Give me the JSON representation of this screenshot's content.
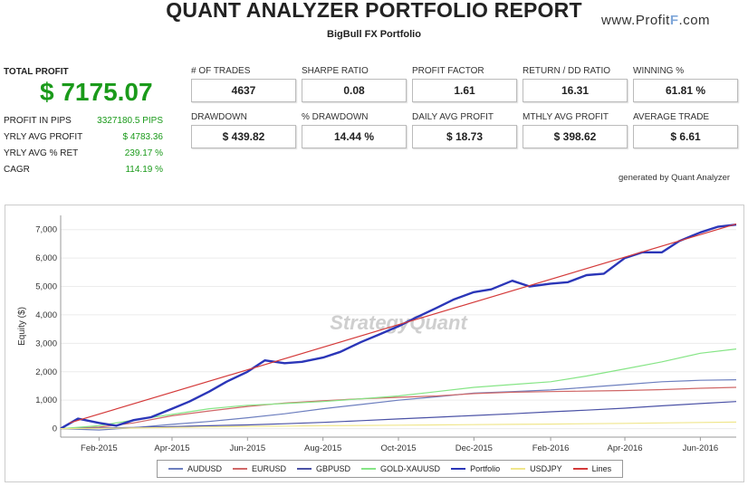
{
  "header": {
    "title": "QUANT ANALYZER PORTFOLIO REPORT",
    "subtitle": "BigBull FX Portfolio",
    "brand_prefix": "www.Profit",
    "brand_mid": "F",
    "brand_suffix": ".com"
  },
  "summary": {
    "total_profit_label": "TOTAL PROFIT",
    "total_profit_value": "$ 7175.07",
    "rows": [
      {
        "label": "PROFIT IN PIPS",
        "value": "3327180.5 PIPS"
      },
      {
        "label": "YRLY AVG PROFIT",
        "value": "$ 4783.36"
      },
      {
        "label": "YRLY AVG % RET",
        "value": "239.17 %"
      },
      {
        "label": "CAGR",
        "value": "114.19 %"
      }
    ]
  },
  "stats": [
    {
      "label": "# OF TRADES",
      "value": "4637"
    },
    {
      "label": "SHARPE RATIO",
      "value": "0.08"
    },
    {
      "label": "PROFIT FACTOR",
      "value": "1.61"
    },
    {
      "label": "RETURN / DD RATIO",
      "value": "16.31"
    },
    {
      "label": "WINNING %",
      "value": "61.81 %"
    },
    {
      "label": "DRAWDOWN",
      "value": "$ 439.82"
    },
    {
      "label": "% DRAWDOWN",
      "value": "14.44 %"
    },
    {
      "label": "DAILY AVG PROFIT",
      "value": "$ 18.73"
    },
    {
      "label": "MTHLY AVG PROFIT",
      "value": "$ 398.62"
    },
    {
      "label": "AVERAGE TRADE",
      "value": "$ 6.61"
    }
  ],
  "generated_by": "generated by Quant Analyzer",
  "watermark": "StrategyQuant",
  "chart_data": {
    "type": "line",
    "title": "",
    "xlabel": "",
    "ylabel": "Equity ($)",
    "ylim": [
      -300,
      7500
    ],
    "yticks": [
      0,
      1000,
      2000,
      3000,
      4000,
      5000,
      6000,
      7000
    ],
    "ytick_labels": [
      "0",
      "1,000",
      "2,000",
      "3,000",
      "4,000",
      "5,000",
      "6,000",
      "7,000"
    ],
    "x_range": [
      "2015-01-01",
      "2016-06-30"
    ],
    "xticks": [
      "2015-02-01",
      "2015-04-01",
      "2015-06-01",
      "2015-08-01",
      "2015-10-01",
      "2015-12-01",
      "2016-02-01",
      "2016-04-01",
      "2016-06-01"
    ],
    "xtick_labels": [
      "Feb-2015",
      "Apr-2015",
      "Jun-2015",
      "Aug-2015",
      "Oct-2015",
      "Dec-2015",
      "Feb-2016",
      "Apr-2016",
      "Jun-2016"
    ],
    "legend_position": "bottom",
    "series": [
      {
        "name": "AUDUSD",
        "color": "#6d7fbf",
        "x": [
          "2015-01-01",
          "2015-02-01",
          "2015-03-01",
          "2015-04-01",
          "2015-05-01",
          "2015-06-01",
          "2015-07-01",
          "2015-08-01",
          "2015-09-01",
          "2015-10-01",
          "2015-11-01",
          "2015-12-01",
          "2016-01-01",
          "2016-02-01",
          "2016-03-01",
          "2016-04-01",
          "2016-05-01",
          "2016-06-01",
          "2016-06-30"
        ],
        "y": [
          0,
          -50,
          30,
          150,
          250,
          380,
          520,
          700,
          850,
          1000,
          1120,
          1250,
          1300,
          1360,
          1450,
          1550,
          1650,
          1700,
          1720
        ]
      },
      {
        "name": "EURUSD",
        "color": "#d06868",
        "x": [
          "2015-01-01",
          "2015-02-01",
          "2015-03-01",
          "2015-04-01",
          "2015-05-01",
          "2015-06-01",
          "2015-07-01",
          "2015-08-01",
          "2015-09-01",
          "2015-10-01",
          "2015-11-01",
          "2015-12-01",
          "2016-01-01",
          "2016-02-01",
          "2016-03-01",
          "2016-04-01",
          "2016-05-01",
          "2016-06-01",
          "2016-06-30"
        ],
        "y": [
          0,
          50,
          200,
          450,
          620,
          780,
          900,
          980,
          1050,
          1100,
          1150,
          1230,
          1280,
          1300,
          1320,
          1340,
          1370,
          1420,
          1450
        ]
      },
      {
        "name": "GBPUSD",
        "color": "#4b52a6",
        "x": [
          "2015-01-01",
          "2015-02-01",
          "2015-03-01",
          "2015-04-01",
          "2015-05-01",
          "2015-06-01",
          "2015-07-01",
          "2015-08-01",
          "2015-09-01",
          "2015-10-01",
          "2015-11-01",
          "2015-12-01",
          "2016-01-01",
          "2016-02-01",
          "2016-03-01",
          "2016-04-01",
          "2016-05-01",
          "2016-06-01",
          "2016-06-30"
        ],
        "y": [
          0,
          20,
          40,
          70,
          100,
          130,
          170,
          220,
          280,
          340,
          400,
          460,
          520,
          590,
          650,
          720,
          800,
          880,
          950
        ]
      },
      {
        "name": "GOLD-XAUUSD",
        "color": "#86e586",
        "x": [
          "2015-01-01",
          "2015-02-01",
          "2015-03-01",
          "2015-04-01",
          "2015-05-01",
          "2015-06-01",
          "2015-07-01",
          "2015-08-01",
          "2015-09-01",
          "2015-10-01",
          "2015-11-01",
          "2015-12-01",
          "2016-01-01",
          "2016-02-01",
          "2016-03-01",
          "2016-04-01",
          "2016-05-01",
          "2016-06-01",
          "2016-06-30"
        ],
        "y": [
          0,
          100,
          300,
          500,
          700,
          820,
          880,
          950,
          1050,
          1150,
          1300,
          1450,
          1550,
          1650,
          1850,
          2100,
          2350,
          2650,
          2800
        ]
      },
      {
        "name": "Portfolio",
        "color": "#2b36b8",
        "x": [
          "2015-01-01",
          "2015-01-15",
          "2015-02-01",
          "2015-02-15",
          "2015-03-01",
          "2015-03-15",
          "2015-04-01",
          "2015-04-15",
          "2015-05-01",
          "2015-05-15",
          "2015-06-01",
          "2015-06-15",
          "2015-07-01",
          "2015-07-15",
          "2015-08-01",
          "2015-08-15",
          "2015-09-01",
          "2015-09-15",
          "2015-10-01",
          "2015-10-15",
          "2015-11-01",
          "2015-11-15",
          "2015-12-01",
          "2015-12-15",
          "2016-01-01",
          "2016-01-15",
          "2016-02-01",
          "2016-02-15",
          "2016-03-01",
          "2016-03-15",
          "2016-04-01",
          "2016-04-15",
          "2016-05-01",
          "2016-05-15",
          "2016-06-01",
          "2016-06-15",
          "2016-06-30"
        ],
        "y": [
          0,
          350,
          200,
          100,
          300,
          400,
          700,
          950,
          1300,
          1650,
          2000,
          2400,
          2300,
          2350,
          2500,
          2700,
          3050,
          3300,
          3600,
          3900,
          4250,
          4550,
          4800,
          4900,
          5200,
          5000,
          5100,
          5150,
          5400,
          5450,
          6000,
          6200,
          6200,
          6600,
          6900,
          7100,
          7175
        ]
      },
      {
        "name": "USDJPY",
        "color": "#f0e68c",
        "x": [
          "2015-01-01",
          "2015-02-01",
          "2015-03-01",
          "2015-04-01",
          "2015-05-01",
          "2015-06-01",
          "2015-07-01",
          "2015-08-01",
          "2015-09-01",
          "2015-10-01",
          "2015-11-01",
          "2015-12-01",
          "2016-01-01",
          "2016-02-01",
          "2016-03-01",
          "2016-04-01",
          "2016-05-01",
          "2016-06-01",
          "2016-06-30"
        ],
        "y": [
          0,
          10,
          20,
          40,
          60,
          80,
          90,
          100,
          110,
          120,
          130,
          140,
          150,
          160,
          170,
          185,
          200,
          215,
          230
        ]
      },
      {
        "name": "Lines",
        "color": "#d43a3a",
        "x": [
          "2015-01-08",
          "2016-06-30"
        ],
        "y": [
          200,
          7200
        ]
      }
    ]
  }
}
